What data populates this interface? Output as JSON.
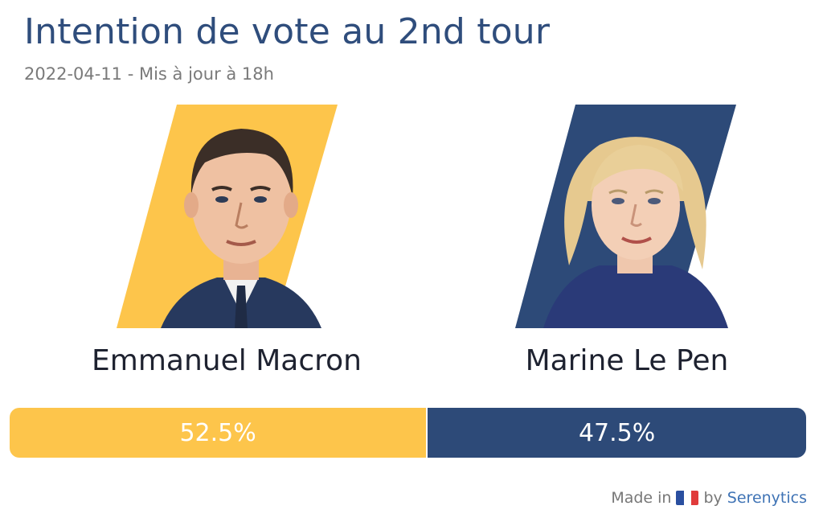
{
  "header": {
    "title": "Intention de vote au 2nd tour",
    "subtitle": "2022-04-11 - Mis à jour à 18h"
  },
  "candidates": [
    {
      "name": "Emmanuel Macron",
      "share_label": "52.5%",
      "color": "#fdc54b"
    },
    {
      "name": "Marine Le Pen",
      "share_label": "47.5%",
      "color": "#2d4a78"
    }
  ],
  "chart_data": {
    "type": "bar",
    "orientation": "horizontal-stacked",
    "categories": [
      "Emmanuel Macron",
      "Marine Le Pen"
    ],
    "values": [
      52.5,
      47.5
    ],
    "unit": "%",
    "title": "Intention de vote au 2nd tour",
    "colors": [
      "#fdc54b",
      "#2d4a78"
    ]
  },
  "footer": {
    "made_in": "Made in",
    "by": "by",
    "brand": "Serenytics",
    "flag_colors": [
      "#2a4fa0",
      "#ffffff",
      "#e03b3b"
    ]
  }
}
